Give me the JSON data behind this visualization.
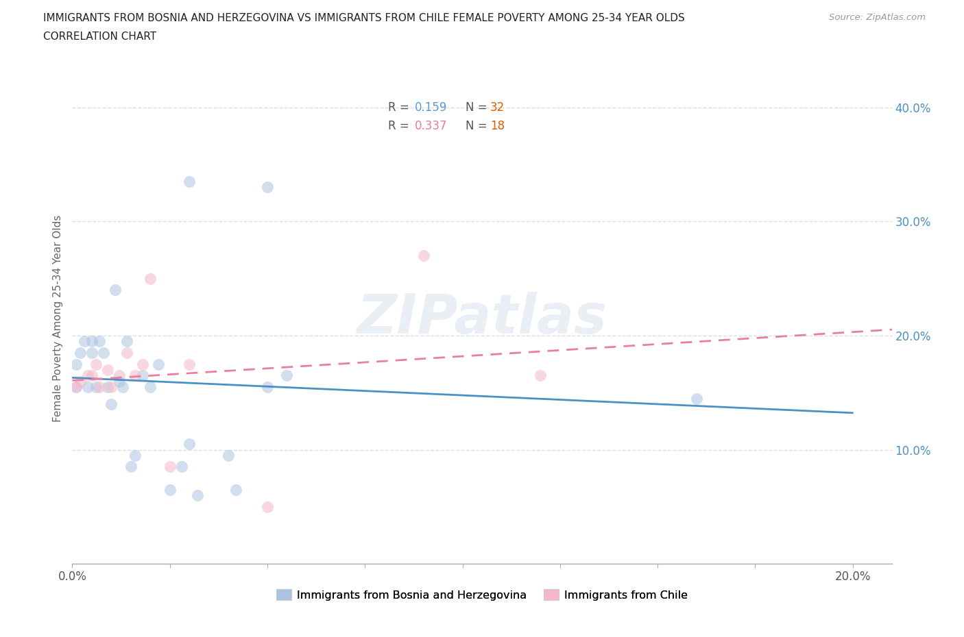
{
  "title_line1": "IMMIGRANTS FROM BOSNIA AND HERZEGOVINA VS IMMIGRANTS FROM CHILE FEMALE POVERTY AMONG 25-34 YEAR OLDS",
  "title_line2": "CORRELATION CHART",
  "source": "Source: ZipAtlas.com",
  "ylabel": "Female Poverty Among 25-34 Year Olds",
  "xlim": [
    0.0,
    0.21
  ],
  "ylim": [
    0.0,
    0.43
  ],
  "xticks": [
    0.0,
    0.025,
    0.05,
    0.075,
    0.1,
    0.125,
    0.15,
    0.175,
    0.2
  ],
  "xtick_labels": [
    "0.0%",
    "",
    "",
    "",
    "",
    "",
    "",
    "",
    "20.0%"
  ],
  "yticks_right": [
    0.1,
    0.2,
    0.3,
    0.4
  ],
  "ytick_right_labels": [
    "10.0%",
    "20.0%",
    "30.0%",
    "40.0%"
  ],
  "bosnia_label": "Immigrants from Bosnia and Herzegovina",
  "chile_label": "Immigrants from Chile",
  "bosnia_color": "#aac4e0",
  "chile_color": "#f4b8c8",
  "bosnia_line_color": "#4a90c4",
  "chile_line_color": "#e87fa0",
  "bosnia_R": 0.159,
  "bosnia_N": 32,
  "chile_R": 0.337,
  "chile_N": 18,
  "bosnia_x": [
    0.001,
    0.001,
    0.002,
    0.003,
    0.004,
    0.005,
    0.005,
    0.006,
    0.007,
    0.008,
    0.009,
    0.01,
    0.011,
    0.012,
    0.013,
    0.014,
    0.015,
    0.016,
    0.018,
    0.02,
    0.022,
    0.025,
    0.028,
    0.03,
    0.032,
    0.04,
    0.042,
    0.05,
    0.055,
    0.03,
    0.05,
    0.16
  ],
  "bosnia_y": [
    0.155,
    0.175,
    0.185,
    0.195,
    0.155,
    0.195,
    0.185,
    0.155,
    0.195,
    0.185,
    0.155,
    0.14,
    0.24,
    0.16,
    0.155,
    0.195,
    0.085,
    0.095,
    0.165,
    0.155,
    0.175,
    0.065,
    0.085,
    0.105,
    0.06,
    0.095,
    0.065,
    0.155,
    0.165,
    0.335,
    0.33,
    0.145
  ],
  "chile_x": [
    0.001,
    0.002,
    0.004,
    0.005,
    0.006,
    0.007,
    0.009,
    0.01,
    0.012,
    0.014,
    0.016,
    0.018,
    0.02,
    0.025,
    0.03,
    0.05,
    0.09,
    0.12
  ],
  "chile_y": [
    0.155,
    0.16,
    0.165,
    0.165,
    0.175,
    0.155,
    0.17,
    0.155,
    0.165,
    0.185,
    0.165,
    0.175,
    0.25,
    0.085,
    0.175,
    0.05,
    0.27,
    0.165
  ],
  "watermark": "ZIPatlas",
  "background_color": "#ffffff",
  "grid_color": "#dddddd",
  "marker_size": 150,
  "marker_alpha": 0.55,
  "legend_R_color_bosnia": "#5b9bd5",
  "legend_R_color_chile": "#e879a0",
  "legend_N_color": "#e05c00"
}
